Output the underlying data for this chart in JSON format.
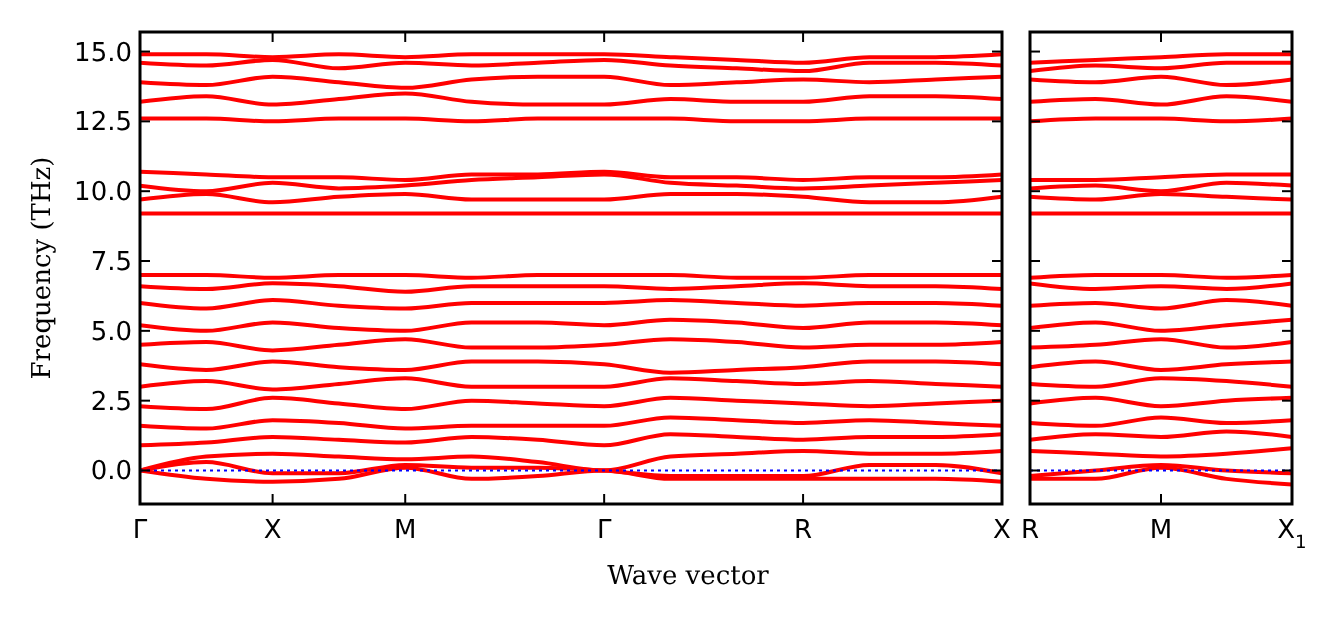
{
  "chart_data": [
    {
      "type": "line",
      "ylabel": "Frequency (THz)",
      "xlabel": "Wave vector",
      "categories": [
        "Γ",
        null,
        "X",
        null,
        "M",
        null,
        null,
        "Γ",
        null,
        null,
        "R",
        null,
        null,
        "X"
      ],
      "ylim": [
        -1.2,
        15.7
      ],
      "yticks": [
        {
          "value": 0,
          "label": "0.0"
        },
        {
          "value": 2.5,
          "label": "2.5"
        },
        {
          "value": 5,
          "label": "5.0"
        },
        {
          "value": 7.5,
          "label": "7.5"
        },
        {
          "value": 10,
          "label": "10.0"
        },
        {
          "value": 12.5,
          "label": "12.5"
        },
        {
          "value": 15,
          "label": "15.0"
        }
      ],
      "ref_lines": [
        {
          "axis": "y",
          "value": 0,
          "color": "#0000ff",
          "line_style": "dotted"
        }
      ],
      "line_style": "solid",
      "series": [
        {
          "color": "#ff0000",
          "values": [
            0,
            -0.3,
            -0.4,
            -0.3,
            0.1,
            -0.3,
            -0.2,
            0,
            -0.3,
            -0.3,
            -0.3,
            -0.3,
            -0.3,
            -0.4
          ]
        },
        {
          "color": "#ff0000",
          "values": [
            0,
            0.3,
            -0.1,
            -0.1,
            0.2,
            0.1,
            0.1,
            0,
            -0.2,
            -0.2,
            -0.2,
            0.2,
            0.2,
            -0.1
          ]
        },
        {
          "color": "#ff0000",
          "values": [
            0,
            0.5,
            0.6,
            0.5,
            0.4,
            0.5,
            0.3,
            0,
            0.5,
            0.6,
            0.7,
            0.6,
            0.6,
            0.7
          ]
        },
        {
          "color": "#ff0000",
          "values": [
            0.9,
            1.0,
            1.2,
            1.1,
            1.0,
            1.2,
            1.1,
            0.9,
            1.3,
            1.2,
            1.1,
            1.2,
            1.2,
            1.3
          ]
        },
        {
          "color": "#ff0000",
          "values": [
            1.6,
            1.5,
            1.8,
            1.7,
            1.5,
            1.6,
            1.6,
            1.6,
            1.9,
            1.8,
            1.7,
            1.8,
            1.7,
            1.6
          ]
        },
        {
          "color": "#ff0000",
          "values": [
            2.3,
            2.2,
            2.6,
            2.4,
            2.2,
            2.5,
            2.4,
            2.3,
            2.6,
            2.5,
            2.4,
            2.3,
            2.4,
            2.5
          ]
        },
        {
          "color": "#ff0000",
          "values": [
            3.0,
            3.2,
            2.9,
            3.1,
            3.3,
            3.0,
            3.0,
            3.0,
            3.3,
            3.2,
            3.1,
            3.2,
            3.1,
            3.0
          ]
        },
        {
          "color": "#ff0000",
          "values": [
            3.8,
            3.6,
            3.9,
            3.7,
            3.6,
            3.9,
            3.9,
            3.8,
            3.5,
            3.6,
            3.7,
            3.9,
            3.9,
            3.8
          ]
        },
        {
          "color": "#ff0000",
          "values": [
            4.5,
            4.6,
            4.3,
            4.5,
            4.7,
            4.4,
            4.4,
            4.5,
            4.7,
            4.6,
            4.4,
            4.5,
            4.5,
            4.6
          ]
        },
        {
          "color": "#ff0000",
          "values": [
            5.2,
            5.0,
            5.3,
            5.1,
            5.0,
            5.3,
            5.3,
            5.2,
            5.4,
            5.3,
            5.1,
            5.3,
            5.3,
            5.2
          ]
        },
        {
          "color": "#ff0000",
          "values": [
            6.0,
            5.8,
            6.1,
            5.9,
            5.8,
            6.0,
            6.0,
            6.0,
            6.1,
            6.0,
            5.9,
            6.0,
            6.0,
            5.9
          ]
        },
        {
          "color": "#ff0000",
          "values": [
            6.6,
            6.5,
            6.7,
            6.6,
            6.4,
            6.6,
            6.6,
            6.6,
            6.5,
            6.6,
            6.7,
            6.6,
            6.6,
            6.5
          ]
        },
        {
          "color": "#ff0000",
          "values": [
            7.0,
            7.0,
            6.9,
            7.0,
            7.0,
            6.9,
            7.0,
            7.0,
            7.0,
            6.9,
            6.9,
            7.0,
            7.0,
            7.0
          ]
        },
        {
          "color": "#ff0000",
          "values": [
            9.2,
            9.2,
            9.2,
            9.2,
            9.2,
            9.2,
            9.2,
            9.2,
            9.2,
            9.2,
            9.2,
            9.2,
            9.2,
            9.2
          ]
        },
        {
          "color": "#ff0000",
          "values": [
            9.7,
            9.9,
            9.6,
            9.8,
            9.9,
            9.7,
            9.7,
            9.7,
            9.9,
            9.9,
            9.8,
            9.6,
            9.6,
            9.8
          ]
        },
        {
          "color": "#ff0000",
          "values": [
            10.2,
            10.0,
            10.3,
            10.1,
            10.2,
            10.4,
            10.5,
            10.6,
            10.3,
            10.2,
            10.1,
            10.2,
            10.3,
            10.4
          ]
        },
        {
          "color": "#ff0000",
          "values": [
            10.7,
            10.6,
            10.5,
            10.5,
            10.4,
            10.6,
            10.6,
            10.7,
            10.5,
            10.5,
            10.4,
            10.5,
            10.5,
            10.6
          ]
        },
        {
          "color": "#ff0000",
          "values": [
            12.6,
            12.6,
            12.5,
            12.6,
            12.6,
            12.5,
            12.6,
            12.6,
            12.6,
            12.5,
            12.5,
            12.6,
            12.6,
            12.6
          ]
        },
        {
          "color": "#ff0000",
          "values": [
            13.2,
            13.4,
            13.1,
            13.3,
            13.5,
            13.2,
            13.1,
            13.1,
            13.3,
            13.2,
            13.2,
            13.4,
            13.4,
            13.3
          ]
        },
        {
          "color": "#ff0000",
          "values": [
            13.9,
            13.8,
            14.1,
            13.9,
            13.7,
            14.0,
            14.1,
            14.1,
            13.8,
            13.9,
            14.0,
            13.9,
            14.0,
            14.1
          ]
        },
        {
          "color": "#ff0000",
          "values": [
            14.6,
            14.5,
            14.7,
            14.4,
            14.6,
            14.5,
            14.6,
            14.7,
            14.5,
            14.4,
            14.3,
            14.6,
            14.6,
            14.5
          ]
        },
        {
          "color": "#ff0000",
          "values": [
            14.9,
            14.9,
            14.8,
            14.9,
            14.8,
            14.9,
            14.9,
            14.9,
            14.8,
            14.7,
            14.6,
            14.8,
            14.8,
            14.9
          ]
        }
      ]
    },
    {
      "type": "line",
      "tick_labels": "x",
      "categories": [
        "R",
        null,
        "M",
        null,
        "X$_{1}$"
      ],
      "ylim": [
        -1.2,
        15.7
      ],
      "yticks": [
        {
          "value": 0,
          "label": null
        },
        {
          "value": 2.5,
          "label": null
        },
        {
          "value": 5,
          "label": null
        },
        {
          "value": 7.5,
          "label": null
        },
        {
          "value": 10,
          "label": null
        },
        {
          "value": 12.5,
          "label": null
        },
        {
          "value": 15,
          "label": null
        }
      ],
      "ref_lines": [
        {
          "axis": "y",
          "value": 0,
          "color": "#0000ff",
          "line_style": "dotted"
        }
      ],
      "line_style": "solid",
      "series": [
        {
          "color": "#ff0000",
          "values": [
            -0.3,
            -0.3,
            0.1,
            -0.3,
            -0.5
          ]
        },
        {
          "color": "#ff0000",
          "values": [
            -0.2,
            0,
            0.2,
            0,
            -0.1
          ]
        },
        {
          "color": "#ff0000",
          "values": [
            0.7,
            0.6,
            0.5,
            0.6,
            0.8
          ]
        },
        {
          "color": "#ff0000",
          "values": [
            1.1,
            1.3,
            1.2,
            1.4,
            1.2
          ]
        },
        {
          "color": "#ff0000",
          "values": [
            1.7,
            1.6,
            1.9,
            1.7,
            1.8
          ]
        },
        {
          "color": "#ff0000",
          "values": [
            2.4,
            2.6,
            2.3,
            2.5,
            2.6
          ]
        },
        {
          "color": "#ff0000",
          "values": [
            3.1,
            3.0,
            3.3,
            3.2,
            3.0
          ]
        },
        {
          "color": "#ff0000",
          "values": [
            3.7,
            3.9,
            3.6,
            3.8,
            3.9
          ]
        },
        {
          "color": "#ff0000",
          "values": [
            4.4,
            4.5,
            4.7,
            4.4,
            4.6
          ]
        },
        {
          "color": "#ff0000",
          "values": [
            5.1,
            5.3,
            5.0,
            5.2,
            5.4
          ]
        },
        {
          "color": "#ff0000",
          "values": [
            5.9,
            6.0,
            5.8,
            6.1,
            5.9
          ]
        },
        {
          "color": "#ff0000",
          "values": [
            6.7,
            6.5,
            6.6,
            6.5,
            6.7
          ]
        },
        {
          "color": "#ff0000",
          "values": [
            6.9,
            7.0,
            7.0,
            6.9,
            7.0
          ]
        },
        {
          "color": "#ff0000",
          "values": [
            9.2,
            9.2,
            9.2,
            9.2,
            9.2
          ]
        },
        {
          "color": "#ff0000",
          "values": [
            9.8,
            9.7,
            9.9,
            9.8,
            9.7
          ]
        },
        {
          "color": "#ff0000",
          "values": [
            10.1,
            10.2,
            10.0,
            10.3,
            10.2
          ]
        },
        {
          "color": "#ff0000",
          "values": [
            10.4,
            10.4,
            10.5,
            10.6,
            10.6
          ]
        },
        {
          "color": "#ff0000",
          "values": [
            12.5,
            12.6,
            12.6,
            12.5,
            12.6
          ]
        },
        {
          "color": "#ff0000",
          "values": [
            13.2,
            13.3,
            13.1,
            13.4,
            13.2
          ]
        },
        {
          "color": "#ff0000",
          "values": [
            14.0,
            13.9,
            14.1,
            13.8,
            14.0
          ]
        },
        {
          "color": "#ff0000",
          "values": [
            14.3,
            14.5,
            14.4,
            14.6,
            14.6
          ]
        },
        {
          "color": "#ff0000",
          "values": [
            14.6,
            14.7,
            14.8,
            14.9,
            14.9
          ]
        }
      ]
    }
  ]
}
